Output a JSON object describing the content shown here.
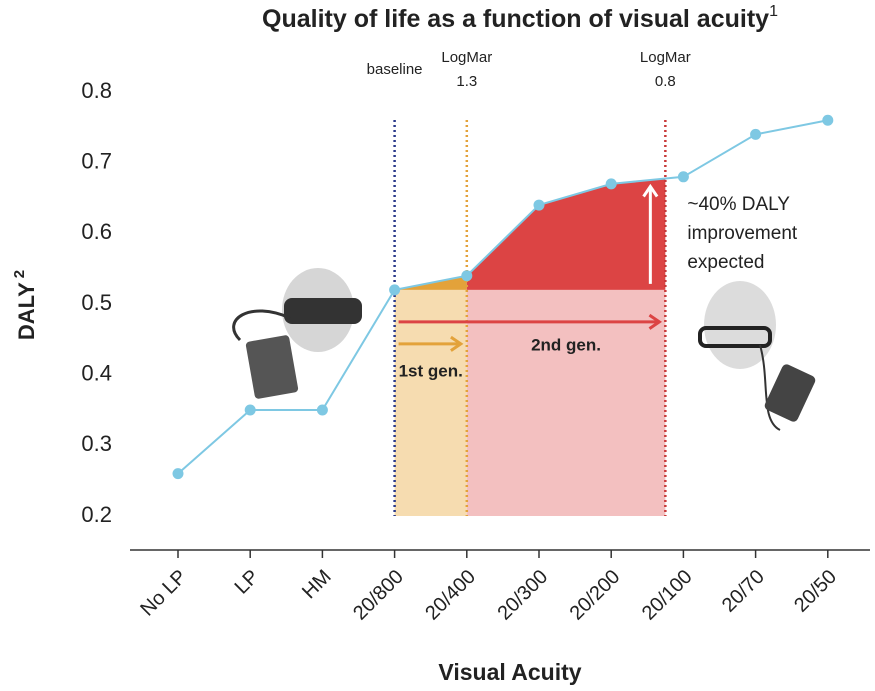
{
  "chart_data": {
    "type": "line",
    "title": "Quality of life as a function of visual acuity",
    "title_note": "1",
    "y_label": "DALY",
    "y_label_note": "2",
    "x_label": "Visual Acuity",
    "categories": [
      "No LP",
      "LP",
      "HM",
      "20/800",
      "20/400",
      "20/300",
      "20/200",
      "20/100",
      "20/70",
      "20/50"
    ],
    "values": [
      0.26,
      0.35,
      0.35,
      0.52,
      0.54,
      0.64,
      0.67,
      0.68,
      0.74,
      0.76
    ],
    "color": "#7ec8e3",
    "ylim": [
      0.2,
      0.8
    ],
    "yticks": [
      0.2,
      0.3,
      0.4,
      0.5,
      0.6,
      0.7,
      0.8
    ],
    "annotations": {
      "baseline": "baseline",
      "logmar_13": [
        "LogMar",
        "1.3"
      ],
      "logmar_08": [
        "LogMar",
        "0.8"
      ],
      "improvement": [
        "~40% DALY",
        "improvement",
        "expected"
      ],
      "gen1": "1st gen.",
      "gen2": "2nd gen."
    }
  }
}
